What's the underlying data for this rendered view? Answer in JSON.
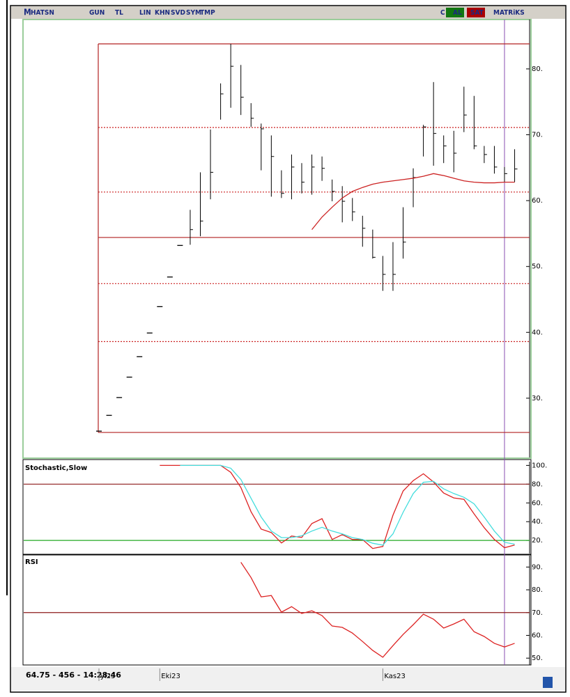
{
  "toolbar": {
    "items": [
      "M",
      "HATSN",
      "GUN",
      "TL",
      "LIN",
      "KHN",
      "SVD",
      "SYM",
      "TMP",
      "C",
      "AL",
      "SAT",
      "MATRiKS"
    ]
  },
  "status": {
    "text": "64.75 - 456 - 14:28:46"
  },
  "chart_data": [
    {
      "type": "ohlc",
      "color": "#000000",
      "ylim": [
        21,
        87.5
      ],
      "yticks": [
        {
          "value": 80,
          "label": "80."
        },
        {
          "value": 70,
          "label": "70."
        },
        {
          "value": 60,
          "label": "60."
        },
        {
          "value": 50,
          "label": "50."
        },
        {
          "value": 40,
          "label": "40."
        },
        {
          "value": 30,
          "label": "30."
        }
      ],
      "high": [
        null,
        null,
        null,
        null,
        null,
        null,
        null,
        null,
        null,
        58.6,
        64.3,
        70.8,
        77.8,
        83.8,
        80.6,
        74.8,
        71.7,
        69.9,
        64.6,
        67.0,
        65.7,
        67.0,
        66.7,
        63.2,
        62.2,
        60.4,
        57.7,
        55.6,
        51.6,
        53.7,
        59.0,
        64.9,
        71.5,
        78.0,
        69.9,
        70.6,
        77.3,
        75.9,
        68.3,
        68.3,
        65.1,
        67.8
      ],
      "low": [
        null,
        null,
        null,
        null,
        null,
        null,
        null,
        null,
        null,
        53.3,
        54.6,
        60.2,
        72.3,
        74.1,
        73.0,
        71.2,
        64.6,
        60.6,
        60.4,
        60.2,
        61.1,
        60.9,
        63.0,
        59.9,
        56.7,
        56.9,
        53.0,
        51.2,
        46.3,
        46.3,
        51.2,
        59.0,
        66.7,
        65.3,
        65.7,
        64.3,
        70.4,
        67.8,
        65.7,
        64.1,
        62.8,
        62.8
      ],
      "close": [
        25.0,
        27.4,
        30.1,
        33.2,
        36.3,
        39.9,
        43.9,
        48.4,
        53.2,
        55.6,
        56.9,
        64.3,
        76.2,
        80.4,
        75.7,
        72.5,
        70.9,
        66.7,
        61.1,
        65.1,
        62.8,
        65.1,
        64.9,
        61.4,
        59.9,
        58.3,
        55.8,
        51.4,
        48.8,
        48.8,
        53.7,
        63.5,
        71.2,
        70.2,
        68.3,
        67.2,
        73.0,
        68.3,
        67.0,
        65.1,
        64.1,
        64.8
      ],
      "series": [
        {
          "color": "#cc2222",
          "values": [
            null,
            null,
            null,
            null,
            null,
            null,
            null,
            null,
            null,
            null,
            null,
            null,
            null,
            null,
            null,
            null,
            null,
            null,
            null,
            null,
            null,
            55.6,
            57.5,
            59.0,
            60.4,
            61.4,
            62.0,
            62.5,
            62.8,
            63.0,
            63.2,
            63.4,
            63.7,
            64.1,
            63.8,
            63.4,
            63.0,
            62.8,
            62.7,
            62.7,
            62.8,
            62.8
          ]
        }
      ],
      "levels": [
        {
          "value": 83.8,
          "color": "#b22222",
          "dash": false
        },
        {
          "value": 71.1,
          "color": "#cc2222",
          "dash": true
        },
        {
          "value": 61.3,
          "color": "#cc2222",
          "dash": true
        },
        {
          "value": 54.4,
          "color": "#b22222",
          "dash": false
        },
        {
          "value": 47.4,
          "color": "#cc2222",
          "dash": true
        },
        {
          "value": 38.6,
          "color": "#cc2222",
          "dash": true
        },
        {
          "value": 24.8,
          "color": "#b22222",
          "dash": false
        }
      ]
    },
    {
      "type": "line",
      "title": "Stochastic,Slow",
      "ylim": [
        6,
        104
      ],
      "yticks": [
        {
          "value": 100,
          "label": "100."
        },
        {
          "value": 80,
          "label": "80."
        },
        {
          "value": 60,
          "label": "60."
        },
        {
          "value": 40,
          "label": "40."
        },
        {
          "value": 20,
          "label": "20."
        }
      ],
      "series": [
        {
          "color": "#dd2222",
          "values": [
            null,
            null,
            null,
            null,
            null,
            null,
            100,
            100,
            100,
            100,
            100,
            100,
            100,
            92.6,
            76.4,
            50.6,
            32.1,
            28.4,
            17.3,
            24.7,
            23.2,
            38,
            43.2,
            21,
            26.2,
            21,
            21,
            11.4,
            13.6,
            46.9,
            72.7,
            83.8,
            91.1,
            82.3,
            70.5,
            65.3,
            63.8,
            48.3,
            33.6,
            21,
            12.2,
            15.1
          ]
        },
        {
          "color": "#44dddd",
          "values": [
            null,
            null,
            null,
            null,
            null,
            null,
            null,
            null,
            100,
            100,
            100,
            100,
            100,
            97,
            85,
            65,
            45,
            30,
            23,
            23,
            25,
            30,
            34,
            30,
            27,
            23,
            21,
            17,
            15,
            27,
            50,
            70,
            82,
            83,
            75,
            70,
            66,
            59,
            45,
            30,
            18,
            16
          ]
        }
      ],
      "levels": [
        {
          "value": 80,
          "color": "#8b1a1a",
          "dash": false
        },
        {
          "value": 20,
          "color": "#22aa22",
          "dash": false
        }
      ]
    },
    {
      "type": "line",
      "title": "RSI",
      "ylim": [
        47,
        95
      ],
      "yticks": [
        {
          "value": 90,
          "label": "90."
        },
        {
          "value": 80,
          "label": "80."
        },
        {
          "value": 70,
          "label": "70."
        },
        {
          "value": 60,
          "label": "60."
        },
        {
          "value": 50,
          "label": "50."
        }
      ],
      "xticks": [
        {
          "value": 0,
          "label": "yl23"
        },
        {
          "value": 6,
          "label": "Eki23"
        },
        {
          "value": 28,
          "label": "Kas23"
        }
      ],
      "series": [
        {
          "color": "#dd2222",
          "values": [
            null,
            null,
            null,
            null,
            null,
            null,
            null,
            null,
            null,
            null,
            null,
            null,
            null,
            null,
            92.1,
            85.4,
            76.9,
            77.5,
            70.2,
            72.6,
            69.6,
            70.8,
            68.7,
            64.1,
            63.5,
            61,
            57.3,
            53.4,
            50.4,
            55.5,
            60.4,
            64.7,
            69.3,
            67.1,
            63.2,
            65,
            67.1,
            61.6,
            59.5,
            56.5,
            54.9,
            56.5
          ]
        }
      ],
      "levels": [
        {
          "value": 70,
          "color": "#8b1a1a",
          "dash": false
        }
      ]
    }
  ]
}
